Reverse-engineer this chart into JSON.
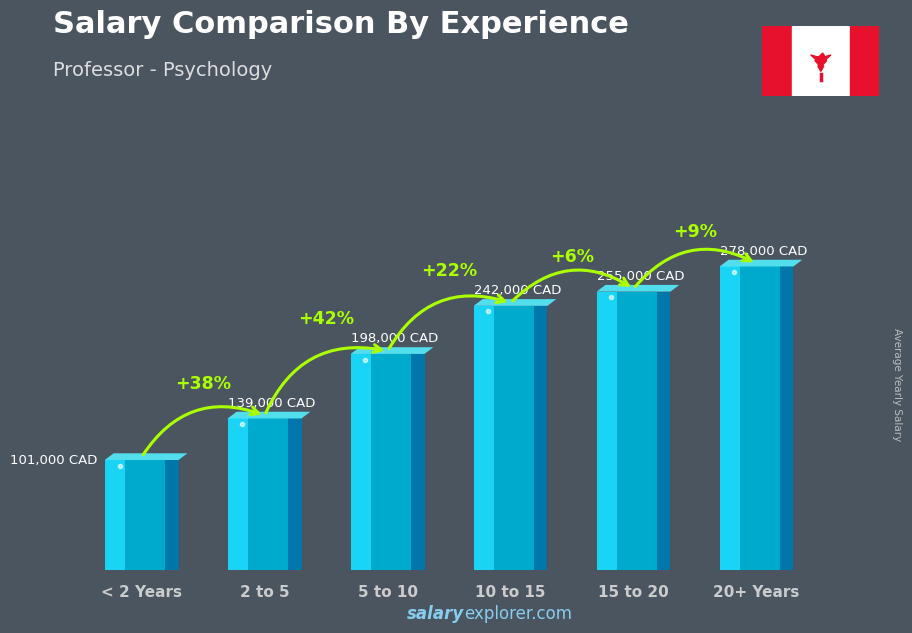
{
  "title": "Salary Comparison By Experience",
  "subtitle": "Professor - Psychology",
  "categories": [
    "< 2 Years",
    "2 to 5",
    "5 to 10",
    "10 to 15",
    "15 to 20",
    "20+ Years"
  ],
  "values": [
    101000,
    139000,
    198000,
    242000,
    255000,
    278000
  ],
  "labels": [
    "101,000 CAD",
    "139,000 CAD",
    "198,000 CAD",
    "242,000 CAD",
    "255,000 CAD",
    "278,000 CAD"
  ],
  "pct_changes": [
    "+38%",
    "+42%",
    "+22%",
    "+6%",
    "+9%"
  ],
  "bar_face_left": "#1ad4f5",
  "bar_face_center": "#00aacc",
  "bar_face_right": "#0077aa",
  "bar_top_light": "#55eeff",
  "title_color": "#ffffff",
  "subtitle_color": "#dddddd",
  "label_color": "#ffffff",
  "pct_color": "#aaff00",
  "tick_color": "#cccccc",
  "footer_salary_color": "#88ccee",
  "footer_explorer_color": "#88ccee",
  "ylabel_text": "Average Yearly Salary",
  "background_color": "#4a5560",
  "ylim_max": 340000,
  "bar_width": 0.6,
  "label_positions": [
    "left",
    "right",
    "right",
    "right",
    "right",
    "right"
  ]
}
